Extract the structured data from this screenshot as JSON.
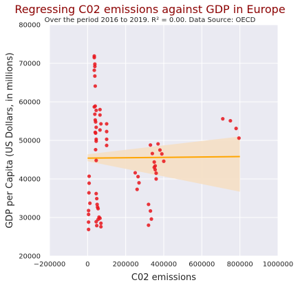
{
  "chart_data": {
    "type": "scatter",
    "title": "Regressing C02 emissions against GDP in Europe",
    "subtitle": "Over the period 2016 to 2019. R² =  0.00. Data Source: OECD",
    "xlabel": "C02 emissions",
    "ylabel": "GDP per Capita (US Dollars, in millions)",
    "xlim": [
      -200000,
      1000000
    ],
    "ylim": [
      20000,
      80000
    ],
    "x_ticks": [
      "−200000",
      "0",
      "200000",
      "400000",
      "600000",
      "800000",
      "1000000"
    ],
    "y_ticks": [
      "20000",
      "30000",
      "40000",
      "50000",
      "60000",
      "70000",
      "80000"
    ],
    "x_tick_values": [
      -200000,
      0,
      200000,
      400000,
      600000,
      800000,
      1000000
    ],
    "y_tick_values": [
      20000,
      30000,
      40000,
      50000,
      60000,
      70000,
      80000
    ],
    "grid": true,
    "point_color": "#e8141b",
    "regression": {
      "color": "#ffa500",
      "band_color": "#f5dfc4",
      "x": [
        0,
        800000
      ],
      "y": [
        45400,
        45800
      ],
      "band_lower_y": [
        44600,
        36700
      ],
      "band_upper_y": [
        46400,
        51000
      ]
    },
    "points": [
      [
        5000,
        26900
      ],
      [
        5000,
        28800
      ],
      [
        5000,
        30800
      ],
      [
        5000,
        31800
      ],
      [
        7000,
        36400
      ],
      [
        8000,
        38900
      ],
      [
        8000,
        40700
      ],
      [
        12000,
        33700
      ],
      [
        35000,
        71900
      ],
      [
        35000,
        71500
      ],
      [
        38000,
        69800
      ],
      [
        38000,
        69200
      ],
      [
        35000,
        68200
      ],
      [
        38000,
        66700
      ],
      [
        40000,
        64100
      ],
      [
        35000,
        58700
      ],
      [
        40000,
        58900
      ],
      [
        45000,
        57800
      ],
      [
        38000,
        56800
      ],
      [
        40000,
        55300
      ],
      [
        42000,
        54800
      ],
      [
        45000,
        53400
      ],
      [
        40000,
        52100
      ],
      [
        42000,
        51900
      ],
      [
        45000,
        50300
      ],
      [
        45000,
        49800
      ],
      [
        42000,
        47600
      ],
      [
        45000,
        44800
      ],
      [
        45000,
        36200
      ],
      [
        48000,
        34900
      ],
      [
        50000,
        33400
      ],
      [
        52000,
        32700
      ],
      [
        55000,
        32300
      ],
      [
        45000,
        28900
      ],
      [
        48000,
        27900
      ],
      [
        55000,
        29500
      ],
      [
        60000,
        30100
      ],
      [
        65000,
        29800
      ],
      [
        70000,
        28500
      ],
      [
        70000,
        27600
      ],
      [
        65000,
        58000
      ],
      [
        65000,
        56600
      ],
      [
        70000,
        54300
      ],
      [
        65000,
        52700
      ],
      [
        100000,
        54300
      ],
      [
        100000,
        52300
      ],
      [
        100000,
        50300
      ],
      [
        100000,
        48700
      ],
      [
        250000,
        41600
      ],
      [
        265000,
        40600
      ],
      [
        270000,
        39000
      ],
      [
        260000,
        37300
      ],
      [
        330000,
        48800
      ],
      [
        340000,
        46600
      ],
      [
        350000,
        44400
      ],
      [
        355000,
        43400
      ],
      [
        350000,
        43000
      ],
      [
        355000,
        42400
      ],
      [
        360000,
        41500
      ],
      [
        360000,
        40000
      ],
      [
        370000,
        49100
      ],
      [
        380000,
        47500
      ],
      [
        390000,
        46500
      ],
      [
        400000,
        44600
      ],
      [
        320000,
        33400
      ],
      [
        330000,
        31700
      ],
      [
        335000,
        29600
      ],
      [
        320000,
        28000
      ],
      [
        710000,
        55600
      ],
      [
        750000,
        55100
      ],
      [
        780000,
        53100
      ],
      [
        795000,
        50600
      ]
    ]
  }
}
